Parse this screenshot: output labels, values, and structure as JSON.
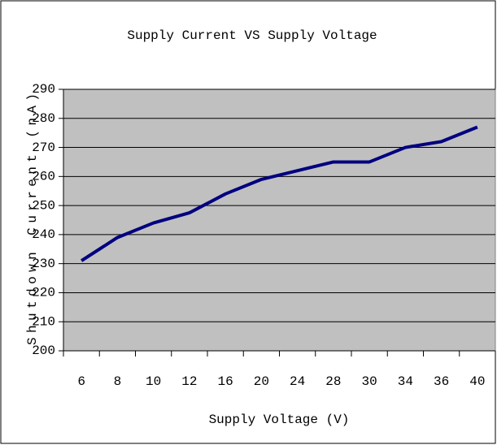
{
  "chart_data": {
    "type": "line",
    "title": "Supply Current VS Supply Voltage",
    "x_label": "Supply Voltage (V)",
    "y_label": "Shutdown Current (nA)",
    "categories": [
      "6",
      "8",
      "10",
      "12",
      "16",
      "20",
      "24",
      "28",
      "30",
      "34",
      "36",
      "40"
    ],
    "values": [
      231,
      239,
      244,
      247.5,
      254,
      259,
      262,
      265,
      265,
      270,
      272,
      277
    ],
    "color": "#000080",
    "ylim": [
      200,
      290
    ],
    "yticks": [
      200,
      210,
      220,
      230,
      240,
      250,
      260,
      270,
      280,
      290
    ],
    "grid": true
  }
}
